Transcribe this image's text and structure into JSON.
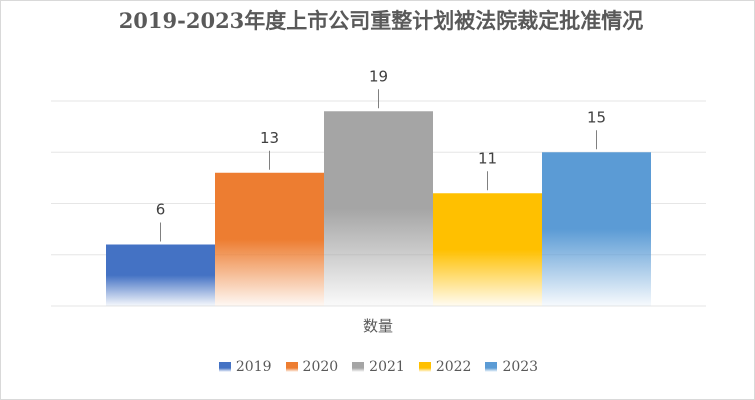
{
  "chart_data": {
    "type": "bar",
    "title": "2019-2023年度上市公司重整计划被法院裁定批准情况",
    "xlabel": "数量",
    "ylabel": "",
    "categories": [
      "数量"
    ],
    "series": [
      {
        "name": "2019",
        "values": [
          6
        ],
        "color": "#4472c4"
      },
      {
        "name": "2020",
        "values": [
          13
        ],
        "color": "#ed7d31"
      },
      {
        "name": "2021",
        "values": [
          19
        ],
        "color": "#a5a5a5"
      },
      {
        "name": "2022",
        "values": [
          11
        ],
        "color": "#ffc000"
      },
      {
        "name": "2023",
        "values": [
          15
        ],
        "color": "#5b9bd5"
      }
    ],
    "ylim": [
      0,
      20
    ],
    "y_gridlines": [
      0,
      5,
      10,
      15,
      20
    ],
    "grid": true,
    "data_labels": true,
    "legend_position": "bottom"
  }
}
